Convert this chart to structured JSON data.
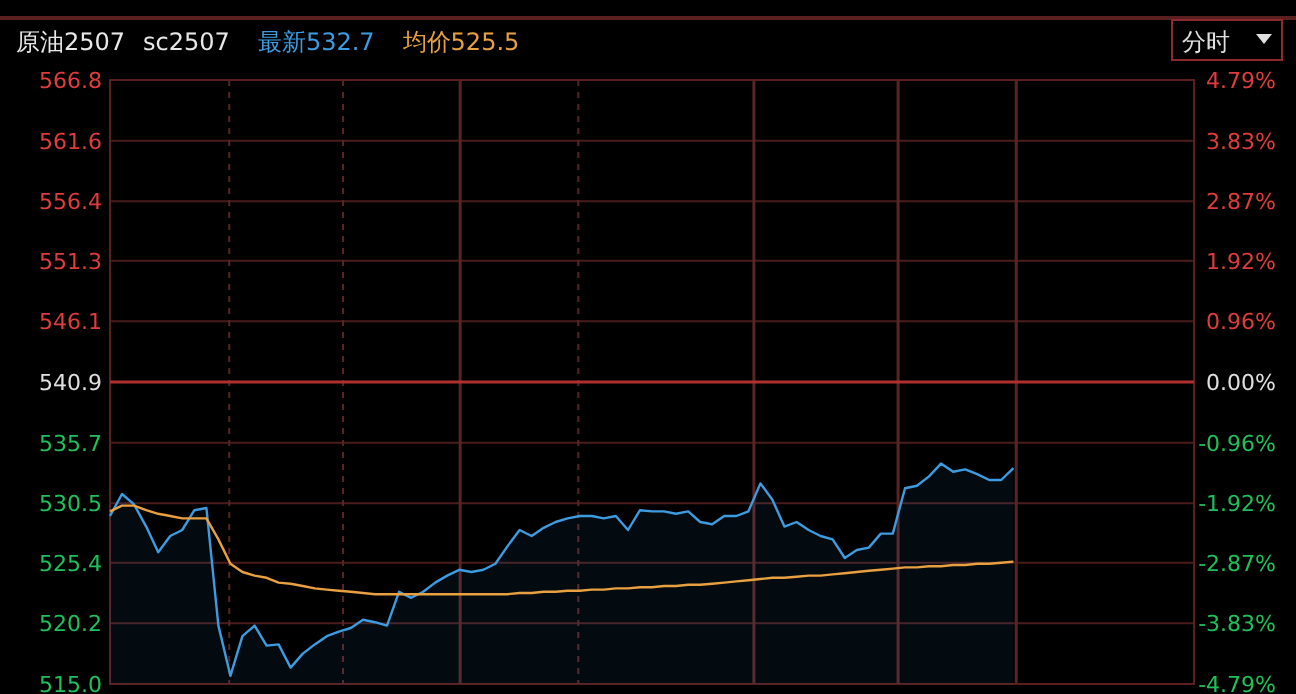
{
  "chart_data": {
    "type": "area",
    "title": "原油2507",
    "subtitle": "sc2507",
    "annotations": [
      "分时"
    ],
    "categories": [
      null,
      null,
      null,
      null,
      null,
      null,
      null,
      null,
      null,
      null,
      null,
      null,
      null,
      null,
      null,
      null,
      null,
      null,
      null,
      null,
      null,
      null,
      null,
      null,
      null,
      null,
      null,
      null,
      null,
      null,
      null,
      null,
      null,
      null,
      null,
      null,
      null,
      null,
      null,
      null,
      null,
      null,
      null,
      null,
      null,
      null,
      null,
      null,
      null,
      null,
      null,
      null,
      null,
      null,
      null,
      null,
      null,
      null,
      null,
      null,
      null,
      null,
      null,
      null,
      null,
      null,
      null,
      null,
      null,
      null,
      null,
      null,
      null,
      null,
      null,
      null,
      null,
      null,
      null,
      null,
      null,
      null,
      null,
      null,
      null,
      null,
      null,
      null,
      null,
      null,
      null
    ],
    "series": [
      {
        "name": "最新532.7",
        "color": "#3d9be0",
        "values": [
          529.4,
          531.3,
          530.4,
          528.5,
          526.3,
          527.7,
          528.2,
          529.9,
          530.1,
          520.0,
          515.7,
          519.1,
          520.0,
          518.3,
          518.4,
          516.4,
          517.6,
          518.4,
          519.1,
          519.5,
          519.8,
          520.5,
          520.3,
          520.0,
          522.9,
          522.4,
          522.9,
          523.7,
          524.3,
          524.8,
          524.6,
          524.8,
          525.3,
          526.8,
          528.2,
          527.7,
          528.4,
          528.9,
          529.2,
          529.4,
          529.4,
          529.2,
          529.4,
          528.2,
          529.9,
          529.8,
          529.8,
          529.6,
          529.8,
          528.9,
          528.7,
          529.4,
          529.4,
          529.8,
          532.2,
          530.8,
          528.5,
          528.9,
          528.2,
          527.7,
          527.4,
          525.8,
          526.5,
          526.7,
          527.9,
          527.9,
          531.8,
          532.0,
          532.8,
          533.9,
          533.2,
          533.4,
          533.0,
          532.5,
          532.5,
          533.5,
          null,
          null,
          null,
          null,
          null,
          null,
          null,
          null,
          null,
          null,
          null,
          null,
          null,
          null,
          null
        ]
      },
      {
        "name": "均价525.5",
        "type": "line",
        "color": "#e8a040",
        "values": [
          529.8,
          530.3,
          530.3,
          529.9,
          529.6,
          529.4,
          529.2,
          529.2,
          529.2,
          527.4,
          525.3,
          524.6,
          524.3,
          524.1,
          523.7,
          523.6,
          523.4,
          523.2,
          523.1,
          523.0,
          522.9,
          522.8,
          522.7,
          522.7,
          522.7,
          522.7,
          522.7,
          522.7,
          522.7,
          522.7,
          522.7,
          522.7,
          522.7,
          522.7,
          522.8,
          522.8,
          522.9,
          522.9,
          523.0,
          523.0,
          523.1,
          523.1,
          523.2,
          523.2,
          523.3,
          523.3,
          523.4,
          523.4,
          523.5,
          523.5,
          523.6,
          523.7,
          523.8,
          523.9,
          524.0,
          524.1,
          524.1,
          524.2,
          524.3,
          524.3,
          524.4,
          524.5,
          524.6,
          524.7,
          524.8,
          524.9,
          525.0,
          525.0,
          525.1,
          525.1,
          525.2,
          525.2,
          525.3,
          525.3,
          525.4,
          525.5,
          null,
          null,
          null,
          null,
          null,
          null,
          null,
          null,
          null,
          null,
          null,
          null,
          null,
          null,
          null
        ]
      }
    ],
    "ylim": [
      515.0,
      566.8
    ],
    "yticks": [
      {
        "value": 515.0,
        "label": "515.0"
      },
      520.2,
      525.4,
      530.5,
      535.7,
      540.9,
      546.1,
      551.3,
      556.4,
      561.6,
      566.8
    ],
    "y2lim": [
      -4.79,
      4.79
    ],
    "y2ticks": [
      {
        "value": -4.79,
        "label": "-4.79%"
      },
      {
        "value": -3.83,
        "label": "-3.83%"
      },
      {
        "value": -2.87,
        "label": "-2.87%"
      },
      {
        "value": -1.92,
        "label": "-1.92%"
      },
      {
        "value": -0.96,
        "label": "-0.96%"
      },
      {
        "value": 0,
        "label": "0.00%"
      },
      {
        "value": 0.96,
        "label": "0.96%"
      },
      {
        "value": 1.92,
        "label": "1.92%"
      },
      {
        "value": 2.87,
        "label": "2.87%"
      },
      {
        "value": 3.83,
        "label": "3.83%"
      },
      {
        "value": 4.79,
        "label": "4.79%"
      }
    ],
    "tick_labels": "y",
    "grid": true,
    "ref_lines": [
      {
        "axis": "y",
        "value": 540.9,
        "color": "#b03030"
      }
    ],
    "legend": "top left"
  }
}
